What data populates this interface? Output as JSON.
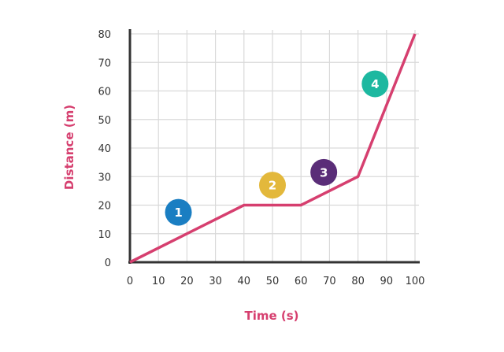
{
  "chart_data": {
    "type": "line",
    "title": "",
    "xlabel": "Time (s)",
    "ylabel": "Distance (m)",
    "xlim": [
      0,
      100
    ],
    "ylim": [
      0,
      80
    ],
    "x_ticks": [
      "0",
      "10",
      "20",
      "30",
      "40",
      "50",
      "60",
      "70",
      "80",
      "90",
      "100"
    ],
    "y_ticks": [
      "0",
      "10",
      "20",
      "30",
      "40",
      "50",
      "60",
      "70",
      "80"
    ],
    "grid": true,
    "series": [
      {
        "points": [
          {
            "x": 0,
            "y": 0
          },
          {
            "x": 40,
            "y": 20
          },
          {
            "x": 60,
            "y": 20
          },
          {
            "x": 80,
            "y": 30
          },
          {
            "x": 100,
            "y": 80
          }
        ]
      }
    ],
    "annotations": [
      {
        "label": "1",
        "x": 17,
        "y": 17.5
      },
      {
        "label": "2",
        "x": 50,
        "y": 27
      },
      {
        "label": "3",
        "x": 68,
        "y": 31.5
      },
      {
        "label": "4",
        "x": 86,
        "y": 62.5
      }
    ]
  },
  "colors": {
    "line": "#d63f6f",
    "axis_title": "#d63f6f",
    "axis": "#333333",
    "grid": "#d9d9d9",
    "markers": [
      "#1a7ec2",
      "#e3b83b",
      "#5a2d78",
      "#1db8a0"
    ]
  }
}
